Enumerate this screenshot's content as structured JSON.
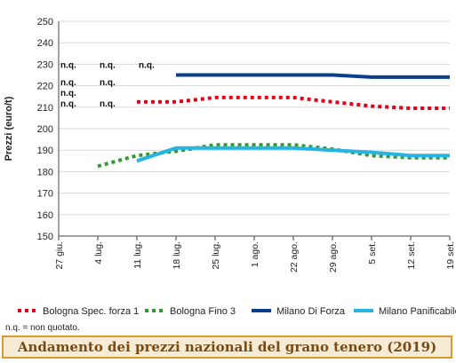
{
  "chart_data": {
    "type": "line",
    "title": "Andamento dei prezzi nazionali del grano tenero (2019)",
    "ylabel": "Prezzi (euro/t)",
    "xlabel": "",
    "ylim": [
      150,
      250
    ],
    "yticks": [
      150,
      160,
      170,
      180,
      190,
      200,
      210,
      220,
      230,
      240,
      250
    ],
    "categories": [
      "27 giu.",
      "4 lug.",
      "11 lug.",
      "18 lug.",
      "25 lug.",
      "1 ago.",
      "22 ago.",
      "29 ago.",
      "5 set.",
      "12 set.",
      "19 set."
    ],
    "grid": "horizontal",
    "legend_position": "bottom",
    "series": [
      {
        "name": "Bologna Spec. forza 1",
        "color": "#e2001a",
        "style": "dotted",
        "values": [
          null,
          null,
          212.5,
          212.5,
          214.5,
          214.5,
          214.5,
          212.5,
          210.5,
          209.5,
          209.5
        ]
      },
      {
        "name": "Bologna Fino 3",
        "color": "#2f9a30",
        "style": "dotted",
        "values": [
          null,
          182.5,
          187.5,
          189.5,
          192.5,
          192.5,
          192.5,
          190.5,
          187.5,
          186.5,
          186.5
        ]
      },
      {
        "name": "Milano Di Forza",
        "color": "#0a3f8f",
        "style": "solid",
        "values": [
          null,
          null,
          null,
          225,
          225,
          225,
          225,
          225,
          224,
          224,
          224
        ]
      },
      {
        "name": "Milano Panificabile",
        "color": "#27b4e3",
        "style": "solid",
        "values": [
          null,
          null,
          185,
          191,
          191,
          191,
          191,
          190,
          189,
          187.5,
          187.5
        ]
      }
    ],
    "annotations": [
      {
        "text": "n.q.",
        "x": "27 giu.",
        "y": 230
      },
      {
        "text": "n.q.",
        "x": "4 lug.",
        "y": 230
      },
      {
        "text": "n.q.",
        "x": "11 lug.",
        "y": 230
      },
      {
        "text": "n.q.",
        "x": "27 giu.",
        "y": 222
      },
      {
        "text": "n.q.",
        "x": "4 lug.",
        "y": 222
      },
      {
        "text": "n.q.",
        "x": "27 giu.",
        "y": 217
      },
      {
        "text": "n.q.",
        "x": "27 giu.",
        "y": 212
      },
      {
        "text": "n.q.",
        "x": "4 lug.",
        "y": 212
      }
    ]
  },
  "footer": {
    "note": "n.q. = non quotato.",
    "title": "Andamento dei prezzi nazionali del grano tenero (2019)"
  }
}
